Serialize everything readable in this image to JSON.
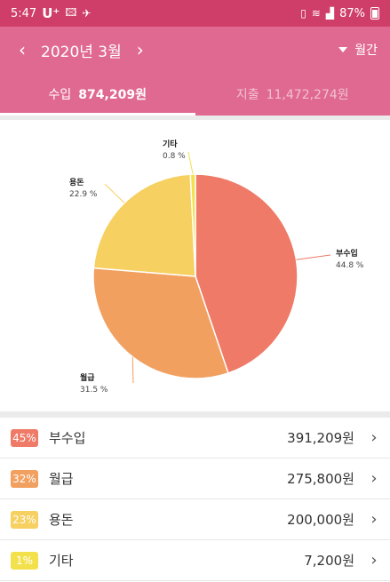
{
  "status_bar": {
    "time": "5:47",
    "carrier": "U⁺",
    "battery": "87%",
    "icons": [
      "image-icon",
      "telegram-icon",
      "vibrate-icon",
      "wifi-icon",
      "signal-icon",
      "battery-icon"
    ]
  },
  "header": {
    "month": "2020년 3월",
    "period_label": "월간",
    "tabs": [
      {
        "label": "수입",
        "amount": "874,209원"
      },
      {
        "label": "지출",
        "amount": "11,472,274원"
      }
    ]
  },
  "colors": {
    "status_bar": "#cf3e68",
    "header": "#e06991",
    "slice_1": "#ef7a68",
    "slice_2": "#f1a060",
    "slice_3": "#f6d060",
    "slice_4": "#f3e14c"
  },
  "chart_data": {
    "type": "pie",
    "labels": [
      "부수입",
      "월급",
      "용돈",
      "기타"
    ],
    "values": [
      44.8,
      31.5,
      22.9,
      0.8
    ],
    "value_labels": [
      "44.8 %",
      "31.5 %",
      "22.9 %",
      "0.8 %"
    ]
  },
  "categories": [
    {
      "percent": "45%",
      "name": "부수입",
      "amount": "391,209원"
    },
    {
      "percent": "32%",
      "name": "월급",
      "amount": "275,800원"
    },
    {
      "percent": "23%",
      "name": "용돈",
      "amount": "200,000원"
    },
    {
      "percent": "1%",
      "name": "기타",
      "amount": "7,200원"
    }
  ]
}
